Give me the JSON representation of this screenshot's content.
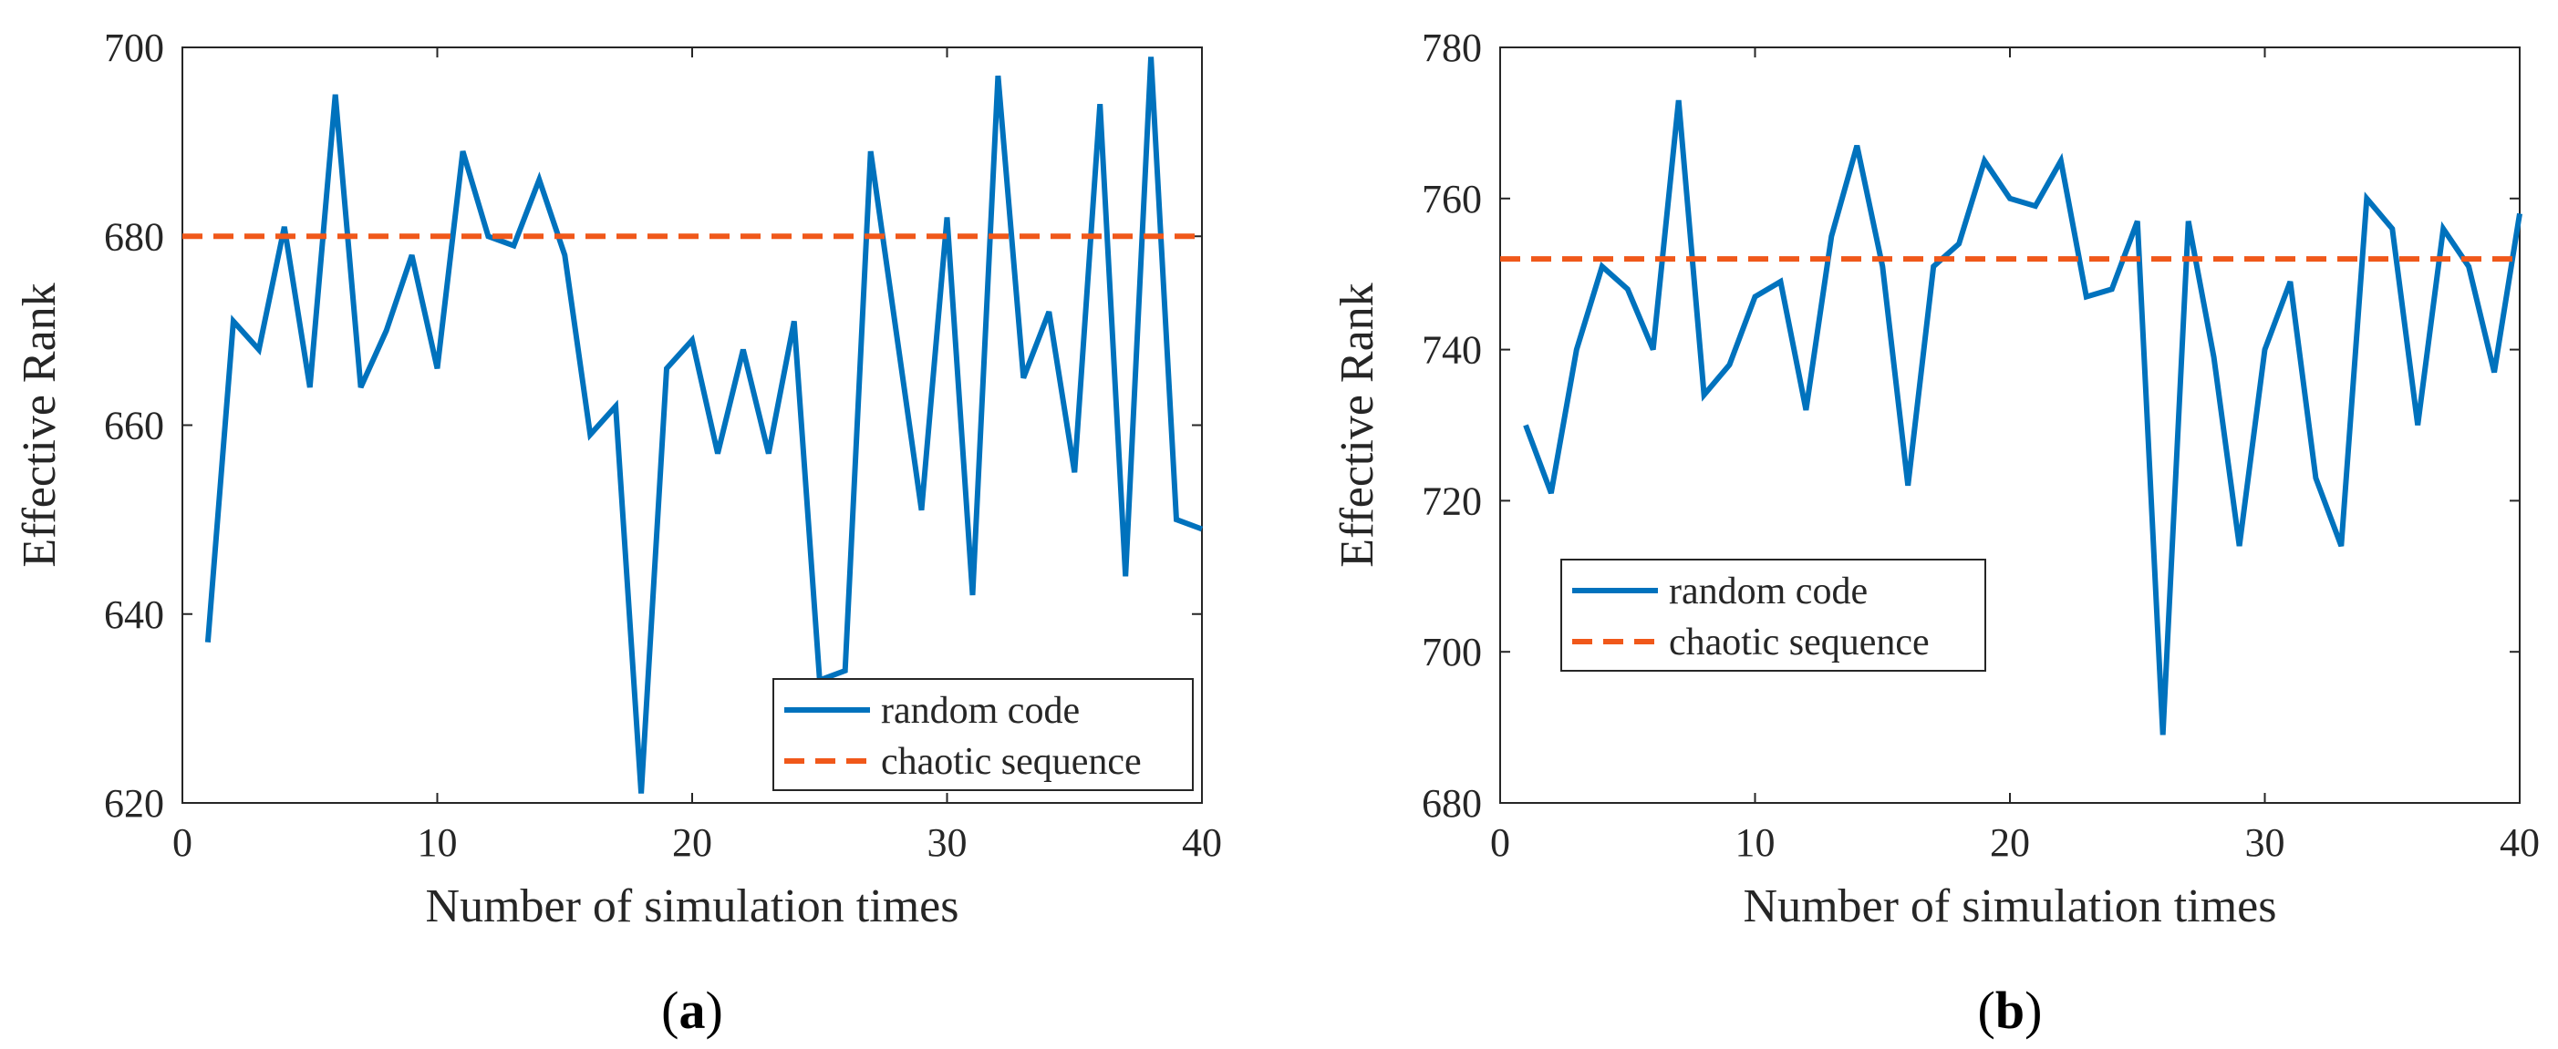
{
  "chart_data": [
    {
      "type": "line",
      "panel_label": "(a)",
      "panel_letter": "a",
      "xlabel": "Number of simulation times",
      "ylabel": "Effective Rank",
      "xlim": [
        0,
        40
      ],
      "ylim": [
        620,
        700
      ],
      "xticks": [
        0,
        10,
        20,
        30,
        40
      ],
      "yticks": [
        620,
        640,
        660,
        680,
        700
      ],
      "legend_position": "bottom-right",
      "series": [
        {
          "name": "random code",
          "style": "solid",
          "color": "#0072BD",
          "x": [
            1,
            2,
            3,
            4,
            5,
            6,
            7,
            8,
            9,
            10,
            11,
            12,
            13,
            14,
            15,
            16,
            17,
            18,
            19,
            20,
            21,
            22,
            23,
            24,
            25,
            26,
            27,
            28,
            29,
            30,
            31,
            32,
            33,
            34,
            35,
            36,
            37,
            38,
            39,
            40
          ],
          "values": [
            637,
            671,
            668,
            681,
            664,
            695,
            664,
            670,
            678,
            666,
            689,
            680,
            679,
            686,
            678,
            659,
            662,
            621,
            666,
            669,
            657,
            668,
            657,
            671,
            633,
            634,
            689,
            670,
            651,
            682,
            642,
            697,
            665,
            672,
            655,
            694,
            644,
            699,
            650,
            649
          ]
        },
        {
          "name": "chaotic sequence",
          "style": "dashed",
          "color": "#F0581A",
          "x": [
            0,
            40
          ],
          "values": [
            680,
            680
          ]
        }
      ]
    },
    {
      "type": "line",
      "panel_label": "(b)",
      "panel_letter": "b",
      "xlabel": "Number of simulation times",
      "ylabel": "Effective Rank",
      "xlim": [
        0,
        40
      ],
      "ylim": [
        680,
        780
      ],
      "xticks": [
        0,
        10,
        20,
        30,
        40
      ],
      "yticks": [
        680,
        700,
        720,
        740,
        760,
        780
      ],
      "legend_position": "middle-left",
      "series": [
        {
          "name": "random code",
          "style": "solid",
          "color": "#0072BD",
          "x": [
            1,
            2,
            3,
            4,
            5,
            6,
            7,
            8,
            9,
            10,
            11,
            12,
            13,
            14,
            15,
            16,
            17,
            18,
            19,
            20,
            21,
            22,
            23,
            24,
            25,
            26,
            27,
            28,
            29,
            30,
            31,
            32,
            33,
            34,
            35,
            36,
            37,
            38,
            39,
            40
          ],
          "values": [
            730,
            721,
            740,
            751,
            748,
            740,
            773,
            734,
            738,
            747,
            749,
            732,
            755,
            767,
            751,
            722,
            751,
            754,
            765,
            760,
            759,
            765,
            747,
            748,
            757,
            689,
            757,
            739,
            714,
            740,
            749,
            723,
            714,
            760,
            756,
            730,
            756,
            751,
            737,
            758
          ]
        },
        {
          "name": "chaotic sequence",
          "style": "dashed",
          "color": "#F0581A",
          "x": [
            0,
            40
          ],
          "values": [
            752,
            752
          ]
        }
      ]
    }
  ]
}
